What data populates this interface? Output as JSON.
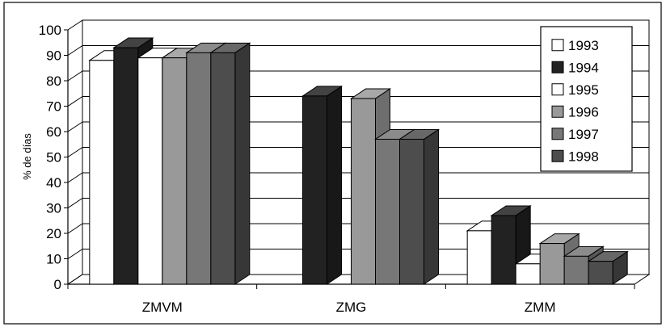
{
  "chart_data": {
    "type": "bar",
    "style": "3d-clustered-column",
    "categories": [
      "ZMVM",
      "ZMG",
      "ZMM"
    ],
    "ylabel": "% de días",
    "xlabel": "",
    "ylim": [
      0,
      100
    ],
    "yticks": [
      0,
      10,
      20,
      30,
      40,
      50,
      60,
      70,
      80,
      90,
      100
    ],
    "grid": true,
    "legend_position": "right",
    "series": [
      {
        "name": "1993",
        "color": "#ffffff",
        "values": [
          88,
          null,
          21
        ]
      },
      {
        "name": "1994",
        "color": "#222222",
        "values": [
          93,
          74,
          27
        ]
      },
      {
        "name": "1995",
        "color": "#ffffff",
        "values": [
          89,
          null,
          8
        ]
      },
      {
        "name": "1996",
        "color": "#999999",
        "values": [
          89,
          73,
          16
        ]
      },
      {
        "name": "1997",
        "color": "#777777",
        "values": [
          91,
          57,
          11
        ]
      },
      {
        "name": "1998",
        "color": "#4d4d4d",
        "values": [
          91,
          57,
          9
        ]
      }
    ]
  }
}
